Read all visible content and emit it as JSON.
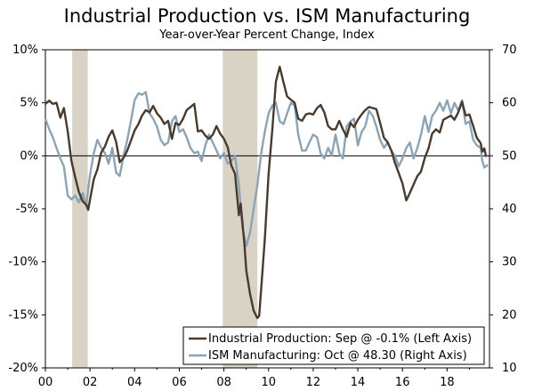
{
  "chart_data": {
    "type": "line",
    "title": "Industrial Production vs. ISM Manufacturing",
    "subtitle": "Year-over-Year Percent Change, Index",
    "x_axis": {
      "range": [
        2000.0,
        2019.9
      ],
      "ticks": [
        2000,
        2002,
        2004,
        2006,
        2008,
        2010,
        2012,
        2014,
        2016,
        2018
      ],
      "tick_labels": [
        "00",
        "02",
        "04",
        "06",
        "08",
        "10",
        "12",
        "14",
        "16",
        "18"
      ]
    },
    "y_left": {
      "range": [
        -20,
        10
      ],
      "ticks": [
        10,
        5,
        0,
        -5,
        -10,
        -15,
        -20
      ],
      "tick_labels": [
        "10%",
        "5%",
        "0%",
        "-5%",
        "-10%",
        "-15%",
        "-20%"
      ]
    },
    "y_right": {
      "range": [
        10,
        70
      ],
      "ticks": [
        70,
        60,
        50,
        40,
        30,
        20,
        10
      ],
      "tick_labels": [
        "70",
        "60",
        "50",
        "40",
        "30",
        "20",
        "10"
      ]
    },
    "recessions": [
      [
        2001.2,
        2001.9
      ],
      [
        2007.95,
        2009.5
      ]
    ],
    "reference_line": 0,
    "colors": {
      "industrial_production": "#4a3a2c",
      "ism": "#8aa4b8",
      "recession": "#d9d3c5"
    },
    "legend_position": "bottom-right",
    "series": [
      {
        "name": "Industrial Production",
        "legend": "Industrial Production: Sep @ -0.1% (Left Axis)",
        "axis": "left",
        "points": [
          [
            2000.0,
            4.9
          ],
          [
            2000.17,
            5.2
          ],
          [
            2000.33,
            4.9
          ],
          [
            2000.5,
            5.0
          ],
          [
            2000.67,
            3.6
          ],
          [
            2000.83,
            4.5
          ],
          [
            2001.0,
            2.3
          ],
          [
            2001.17,
            -0.5
          ],
          [
            2001.33,
            -2.0
          ],
          [
            2001.5,
            -3.4
          ],
          [
            2001.67,
            -4.3
          ],
          [
            2001.83,
            -4.6
          ],
          [
            2001.92,
            -5.1
          ],
          [
            2002.0,
            -4.1
          ],
          [
            2002.17,
            -2.2
          ],
          [
            2002.33,
            -1.3
          ],
          [
            2002.5,
            0.3
          ],
          [
            2002.67,
            0.9
          ],
          [
            2002.83,
            1.8
          ],
          [
            2003.0,
            2.4
          ],
          [
            2003.17,
            1.3
          ],
          [
            2003.33,
            -0.6
          ],
          [
            2003.5,
            -0.2
          ],
          [
            2003.67,
            0.5
          ],
          [
            2003.83,
            1.4
          ],
          [
            2004.0,
            2.4
          ],
          [
            2004.17,
            3.0
          ],
          [
            2004.33,
            3.8
          ],
          [
            2004.5,
            4.3
          ],
          [
            2004.67,
            4.1
          ],
          [
            2004.83,
            4.7
          ],
          [
            2005.0,
            4.0
          ],
          [
            2005.17,
            3.6
          ],
          [
            2005.33,
            3.0
          ],
          [
            2005.5,
            3.3
          ],
          [
            2005.67,
            1.6
          ],
          [
            2005.83,
            3.1
          ],
          [
            2006.0,
            2.9
          ],
          [
            2006.17,
            3.5
          ],
          [
            2006.33,
            4.3
          ],
          [
            2006.5,
            4.6
          ],
          [
            2006.67,
            4.9
          ],
          [
            2006.83,
            2.3
          ],
          [
            2007.0,
            2.4
          ],
          [
            2007.17,
            1.9
          ],
          [
            2007.33,
            1.6
          ],
          [
            2007.5,
            2.0
          ],
          [
            2007.67,
            2.8
          ],
          [
            2007.83,
            2.1
          ],
          [
            2008.0,
            1.6
          ],
          [
            2008.17,
            0.8
          ],
          [
            2008.33,
            -0.9
          ],
          [
            2008.5,
            -1.7
          ],
          [
            2008.67,
            -5.6
          ],
          [
            2008.75,
            -4.5
          ],
          [
            2008.83,
            -6.3
          ],
          [
            2008.92,
            -8.4
          ],
          [
            2009.0,
            -10.8
          ],
          [
            2009.17,
            -13.0
          ],
          [
            2009.33,
            -14.6
          ],
          [
            2009.5,
            -15.3
          ],
          [
            2009.58,
            -15.1
          ],
          [
            2009.67,
            -12.5
          ],
          [
            2009.83,
            -7.9
          ],
          [
            2010.0,
            -1.7
          ],
          [
            2010.17,
            2.5
          ],
          [
            2010.33,
            7.0
          ],
          [
            2010.5,
            8.4
          ],
          [
            2010.67,
            6.9
          ],
          [
            2010.83,
            5.6
          ],
          [
            2011.0,
            5.3
          ],
          [
            2011.17,
            5.0
          ],
          [
            2011.33,
            3.5
          ],
          [
            2011.5,
            3.3
          ],
          [
            2011.67,
            3.9
          ],
          [
            2011.83,
            4.0
          ],
          [
            2012.0,
            3.9
          ],
          [
            2012.17,
            4.5
          ],
          [
            2012.33,
            4.8
          ],
          [
            2012.5,
            4.1
          ],
          [
            2012.67,
            2.8
          ],
          [
            2012.83,
            2.5
          ],
          [
            2013.0,
            2.5
          ],
          [
            2013.17,
            3.3
          ],
          [
            2013.33,
            2.5
          ],
          [
            2013.5,
            1.8
          ],
          [
            2013.67,
            3.1
          ],
          [
            2013.83,
            2.7
          ],
          [
            2014.0,
            3.4
          ],
          [
            2014.17,
            3.9
          ],
          [
            2014.33,
            4.3
          ],
          [
            2014.5,
            4.6
          ],
          [
            2014.67,
            4.5
          ],
          [
            2014.83,
            4.4
          ],
          [
            2015.0,
            3.1
          ],
          [
            2015.17,
            1.7
          ],
          [
            2015.33,
            1.3
          ],
          [
            2015.5,
            0.5
          ],
          [
            2015.67,
            -0.7
          ],
          [
            2015.83,
            -1.6
          ],
          [
            2016.0,
            -2.6
          ],
          [
            2016.17,
            -4.2
          ],
          [
            2016.33,
            -3.5
          ],
          [
            2016.5,
            -2.7
          ],
          [
            2016.67,
            -1.9
          ],
          [
            2016.83,
            -1.5
          ],
          [
            2017.0,
            -0.2
          ],
          [
            2017.17,
            0.7
          ],
          [
            2017.33,
            2.1
          ],
          [
            2017.5,
            2.5
          ],
          [
            2017.67,
            2.2
          ],
          [
            2017.83,
            3.4
          ],
          [
            2018.0,
            3.6
          ],
          [
            2018.17,
            3.8
          ],
          [
            2018.33,
            3.4
          ],
          [
            2018.5,
            4.1
          ],
          [
            2018.67,
            5.1
          ],
          [
            2018.83,
            3.8
          ],
          [
            2019.0,
            3.9
          ],
          [
            2019.17,
            2.8
          ],
          [
            2019.33,
            1.7
          ],
          [
            2019.5,
            1.2
          ],
          [
            2019.58,
            0.4
          ],
          [
            2019.67,
            0.7
          ],
          [
            2019.75,
            -0.1
          ]
        ]
      },
      {
        "name": "ISM Manufacturing",
        "legend": "ISM Manufacturing: Oct @ 48.30 (Right Axis)",
        "axis": "right",
        "points": [
          [
            2000.0,
            57.0
          ],
          [
            2000.17,
            55.0
          ],
          [
            2000.33,
            53.5
          ],
          [
            2000.5,
            51.5
          ],
          [
            2000.67,
            49.5
          ],
          [
            2000.83,
            48.0
          ],
          [
            2001.0,
            42.5
          ],
          [
            2001.17,
            41.8
          ],
          [
            2001.33,
            42.5
          ],
          [
            2001.5,
            41.2
          ],
          [
            2001.67,
            43.0
          ],
          [
            2001.83,
            40.5
          ],
          [
            2002.0,
            46.5
          ],
          [
            2002.17,
            50.5
          ],
          [
            2002.33,
            53.0
          ],
          [
            2002.5,
            51.5
          ],
          [
            2002.67,
            50.5
          ],
          [
            2002.83,
            48.5
          ],
          [
            2003.0,
            51.5
          ],
          [
            2003.17,
            46.8
          ],
          [
            2003.33,
            46.2
          ],
          [
            2003.5,
            50.0
          ],
          [
            2003.67,
            53.0
          ],
          [
            2003.83,
            56.5
          ],
          [
            2004.0,
            60.5
          ],
          [
            2004.17,
            61.8
          ],
          [
            2004.33,
            61.5
          ],
          [
            2004.5,
            62.0
          ],
          [
            2004.67,
            58.0
          ],
          [
            2004.83,
            57.0
          ],
          [
            2005.0,
            55.5
          ],
          [
            2005.17,
            53.0
          ],
          [
            2005.33,
            52.0
          ],
          [
            2005.5,
            52.5
          ],
          [
            2005.67,
            56.5
          ],
          [
            2005.83,
            57.5
          ],
          [
            2006.0,
            54.5
          ],
          [
            2006.17,
            55.0
          ],
          [
            2006.33,
            53.5
          ],
          [
            2006.5,
            51.5
          ],
          [
            2006.67,
            50.5
          ],
          [
            2006.83,
            50.8
          ],
          [
            2007.0,
            49.0
          ],
          [
            2007.17,
            52.0
          ],
          [
            2007.33,
            54.0
          ],
          [
            2007.5,
            52.5
          ],
          [
            2007.67,
            51.0
          ],
          [
            2007.83,
            49.5
          ],
          [
            2008.0,
            50.5
          ],
          [
            2008.17,
            48.5
          ],
          [
            2008.33,
            49.0
          ],
          [
            2008.5,
            50.0
          ],
          [
            2008.67,
            44.5
          ],
          [
            2008.83,
            36.5
          ],
          [
            2009.0,
            33.0
          ],
          [
            2009.17,
            35.5
          ],
          [
            2009.33,
            40.0
          ],
          [
            2009.5,
            44.5
          ],
          [
            2009.67,
            50.5
          ],
          [
            2009.83,
            54.5
          ],
          [
            2010.0,
            58.0
          ],
          [
            2010.17,
            59.5
          ],
          [
            2010.33,
            60.0
          ],
          [
            2010.5,
            56.5
          ],
          [
            2010.67,
            56.0
          ],
          [
            2010.83,
            58.0
          ],
          [
            2011.0,
            60.0
          ],
          [
            2011.17,
            59.5
          ],
          [
            2011.33,
            54.0
          ],
          [
            2011.5,
            51.0
          ],
          [
            2011.67,
            51.0
          ],
          [
            2011.83,
            52.5
          ],
          [
            2012.0,
            54.0
          ],
          [
            2012.17,
            53.5
          ],
          [
            2012.33,
            50.5
          ],
          [
            2012.5,
            49.5
          ],
          [
            2012.67,
            51.5
          ],
          [
            2012.83,
            50.0
          ],
          [
            2013.0,
            54.0
          ],
          [
            2013.17,
            50.5
          ],
          [
            2013.33,
            49.5
          ],
          [
            2013.5,
            55.5
          ],
          [
            2013.67,
            56.5
          ],
          [
            2013.83,
            57.0
          ],
          [
            2014.0,
            52.0
          ],
          [
            2014.17,
            54.5
          ],
          [
            2014.33,
            55.5
          ],
          [
            2014.5,
            58.5
          ],
          [
            2014.67,
            57.5
          ],
          [
            2014.83,
            55.5
          ],
          [
            2015.0,
            53.0
          ],
          [
            2015.17,
            51.5
          ],
          [
            2015.33,
            52.5
          ],
          [
            2015.5,
            51.0
          ],
          [
            2015.67,
            50.0
          ],
          [
            2015.83,
            48.0
          ],
          [
            2016.0,
            49.5
          ],
          [
            2016.17,
            51.5
          ],
          [
            2016.33,
            52.5
          ],
          [
            2016.5,
            49.5
          ],
          [
            2016.67,
            51.5
          ],
          [
            2016.83,
            54.0
          ],
          [
            2017.0,
            57.5
          ],
          [
            2017.17,
            54.5
          ],
          [
            2017.33,
            57.5
          ],
          [
            2017.5,
            58.5
          ],
          [
            2017.67,
            60.0
          ],
          [
            2017.83,
            58.5
          ],
          [
            2018.0,
            60.5
          ],
          [
            2018.17,
            58.0
          ],
          [
            2018.33,
            60.0
          ],
          [
            2018.5,
            58.5
          ],
          [
            2018.67,
            60.5
          ],
          [
            2018.83,
            56.0
          ],
          [
            2019.0,
            56.5
          ],
          [
            2019.17,
            53.0
          ],
          [
            2019.33,
            52.0
          ],
          [
            2019.5,
            51.5
          ],
          [
            2019.58,
            49.0
          ],
          [
            2019.67,
            47.8
          ],
          [
            2019.83,
            48.3
          ]
        ]
      }
    ]
  }
}
